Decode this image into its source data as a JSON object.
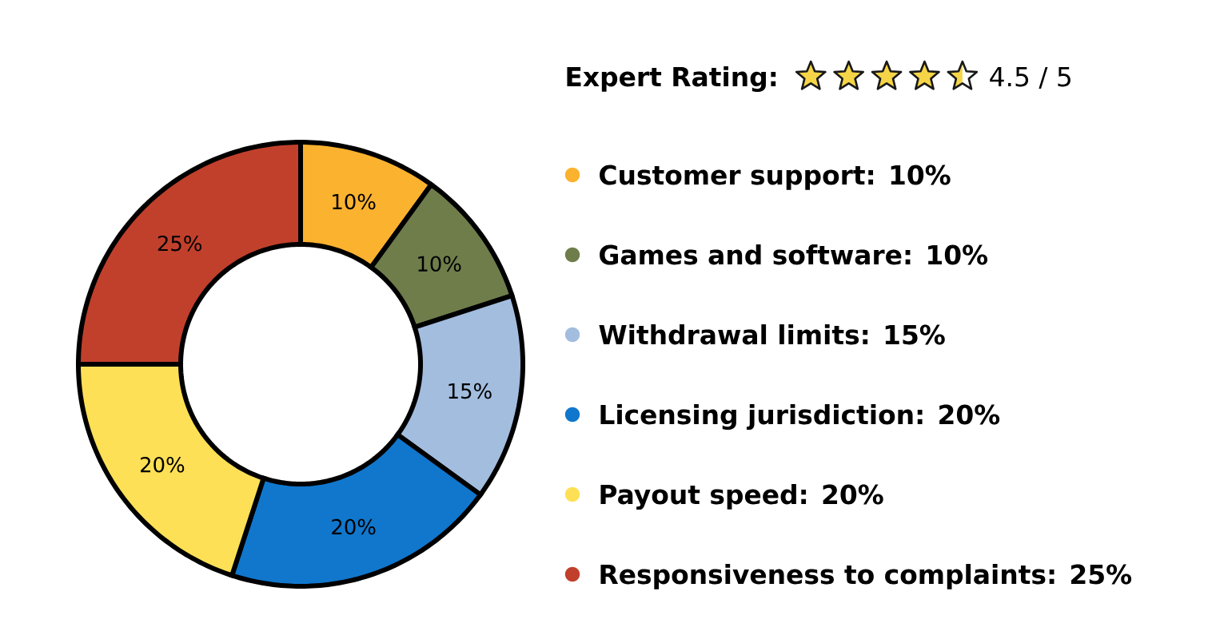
{
  "chart_data": {
    "type": "donut",
    "title": "Expert Rating:",
    "annotations": [
      "4.5 / 5"
    ],
    "categories": [
      "Customer support: 10%",
      "Games and software: 10%",
      "Withdrawal limits: 15%",
      "Licensing jurisdiction: 20%",
      "Payout speed: 20%",
      "Responsiveness to complaints: 25%"
    ],
    "values": [
      10,
      10,
      15,
      20,
      20,
      25
    ],
    "colors": [
      "#fbb22f",
      "#6f7d4b",
      "#a3bddf",
      "#1077cd",
      "#fde055",
      "#c1402c"
    ],
    "value_labels": [
      "10%",
      "10%",
      "15%",
      "20%",
      "20%",
      "25%"
    ],
    "legend": "right"
  }
}
